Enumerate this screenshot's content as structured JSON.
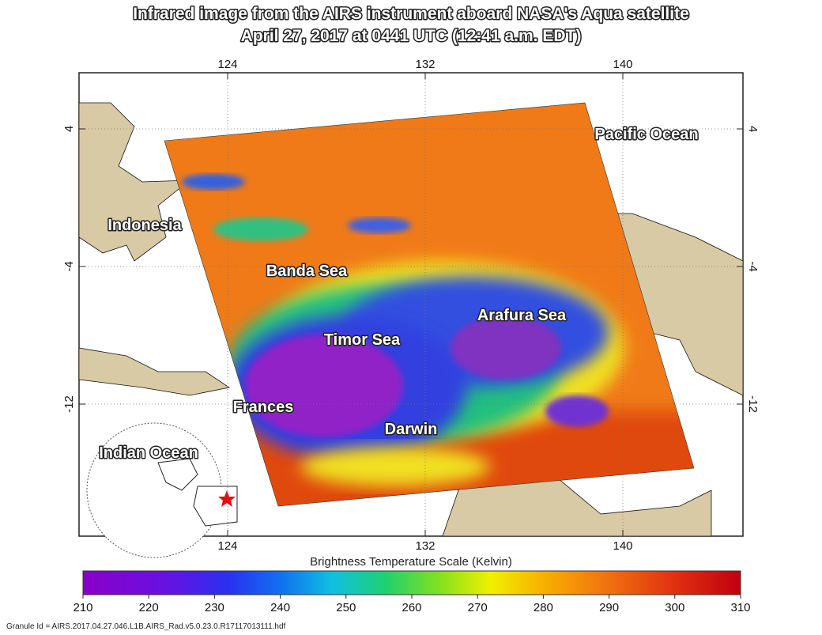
{
  "title": [
    "Infrared image from the AIRS instrument aboard NASA's Aqua satellite",
    "April 27, 2017 at 0441 UTC (12:41 a.m. EDT)"
  ],
  "map": {
    "lon_ticks": [
      124,
      132,
      140
    ],
    "lat_ticks": [
      4,
      -4,
      -12
    ],
    "labels": [
      "Pacific Ocean",
      "Indonesia",
      "Banda Sea",
      "Arafura Sea",
      "Timor Sea",
      "Frances",
      "Darwin",
      "Indian Ocean"
    ]
  },
  "colorbar": {
    "title": "Brightness Temperature Scale (Kelvin)",
    "ticks": [
      210,
      220,
      230,
      240,
      250,
      260,
      270,
      280,
      290,
      300,
      310
    ]
  },
  "granule": "Granule Id = AIRS.2017.04.27.046.L1B.AIRS_Rad.v5.0.23.0.R17117013111.hdf"
}
